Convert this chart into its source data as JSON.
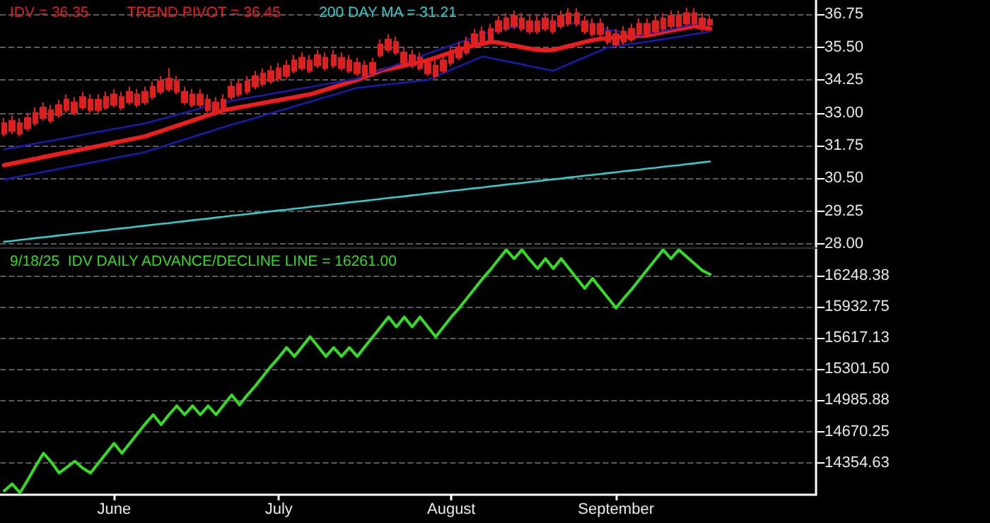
{
  "chart_data": [
    {
      "type": "candlestick",
      "legend": "top left",
      "grid": "y",
      "marker": "none",
      "tick_labels": "y",
      "categories": [
        null,
        null,
        null,
        null,
        null,
        null,
        null,
        null,
        null,
        null,
        null,
        null,
        null,
        null,
        null,
        null,
        null,
        null,
        null,
        null,
        null,
        null,
        null,
        null,
        null,
        null,
        null,
        null,
        null,
        null,
        null,
        null,
        null,
        null,
        null,
        null,
        null,
        null,
        null,
        null,
        null,
        null,
        null,
        null,
        null,
        null,
        null,
        null,
        null,
        null,
        null,
        null,
        null,
        null,
        null,
        null,
        null,
        null,
        null,
        null,
        null,
        null,
        null,
        null,
        null,
        null,
        null,
        null,
        null,
        null,
        null,
        null,
        null,
        null,
        null,
        null,
        null,
        null,
        null,
        null,
        null,
        null,
        null,
        null,
        null,
        null,
        null,
        null,
        null,
        null,
        null,
        null,
        null,
        null,
        null,
        null,
        null,
        null,
        null,
        null,
        null,
        null,
        null,
        null
      ],
      "ylim": [
        27.85,
        37.3
      ],
      "yticks": [
        {
          "value": 28,
          "label": "28.00"
        },
        29.25,
        {
          "value": 30.5,
          "label": "30.50"
        },
        31.75,
        {
          "value": 33,
          "label": "33.00"
        },
        34.25,
        {
          "value": 35.5,
          "label": "35.50"
        },
        36.75
      ],
      "series": [
        {
          "type": "candlestick",
          "name": "IDV = 36.35",
          "color": "#dd1f1f",
          "ohlc": [
            [
              32.6,
              32.8,
              32.1,
              32.2
            ],
            [
              32.7,
              32.9,
              32.2,
              32.3
            ],
            [
              32.6,
              32.8,
              32.1,
              32.2
            ],
            [
              32.8,
              33.0,
              32.3,
              32.4
            ],
            [
              33.0,
              33.2,
              32.5,
              32.6
            ],
            [
              33.2,
              33.4,
              32.7,
              32.8
            ],
            [
              33.1,
              33.3,
              32.6,
              32.7
            ],
            [
              33.3,
              33.5,
              32.8,
              32.9
            ],
            [
              33.5,
              33.7,
              33.0,
              33.1
            ],
            [
              33.4,
              33.6,
              32.9,
              33.0
            ],
            [
              33.6,
              33.8,
              33.1,
              33.2
            ],
            [
              33.5,
              33.7,
              33.0,
              33.1
            ],
            [
              33.5,
              33.7,
              33.0,
              33.1
            ],
            [
              33.6,
              33.8,
              33.1,
              33.2
            ],
            [
              33.7,
              33.9,
              33.2,
              33.3
            ],
            [
              33.6,
              33.8,
              33.1,
              33.2
            ],
            [
              33.8,
              34.0,
              33.3,
              33.4
            ],
            [
              33.7,
              33.9,
              33.2,
              33.3
            ],
            [
              33.8,
              34.0,
              33.3,
              33.4
            ],
            [
              34.0,
              34.2,
              33.5,
              33.6
            ],
            [
              34.2,
              34.4,
              33.7,
              33.8
            ],
            [
              34.3,
              34.7,
              33.8,
              33.9
            ],
            [
              34.2,
              34.4,
              33.7,
              33.8
            ],
            [
              33.8,
              34.0,
              33.3,
              33.4
            ],
            [
              33.7,
              33.9,
              33.2,
              33.3
            ],
            [
              33.7,
              33.9,
              33.2,
              33.3
            ],
            [
              33.5,
              33.7,
              33.0,
              33.1
            ],
            [
              33.4,
              33.6,
              32.9,
              33.0
            ],
            [
              33.5,
              33.7,
              33.0,
              33.1
            ],
            [
              34.0,
              34.2,
              33.5,
              33.6
            ],
            [
              34.1,
              34.3,
              33.6,
              33.7
            ],
            [
              34.2,
              34.4,
              33.7,
              33.8
            ],
            [
              34.4,
              34.6,
              33.9,
              34.0
            ],
            [
              34.5,
              34.7,
              34.0,
              34.1
            ],
            [
              34.6,
              34.8,
              34.1,
              34.2
            ],
            [
              34.7,
              34.9,
              34.2,
              34.3
            ],
            [
              34.8,
              35.0,
              34.3,
              34.4
            ],
            [
              35.0,
              35.2,
              34.5,
              34.6
            ],
            [
              35.1,
              35.3,
              34.6,
              34.7
            ],
            [
              35.0,
              35.2,
              34.5,
              34.6
            ],
            [
              35.2,
              35.4,
              34.7,
              34.8
            ],
            [
              35.1,
              35.3,
              34.6,
              34.7
            ],
            [
              35.2,
              35.4,
              34.7,
              34.8
            ],
            [
              35.1,
              35.3,
              34.6,
              34.7
            ],
            [
              35.0,
              35.2,
              34.5,
              34.6
            ],
            [
              34.9,
              35.1,
              34.4,
              34.5
            ],
            [
              34.8,
              35.0,
              34.3,
              34.4
            ],
            [
              34.9,
              35.1,
              34.4,
              34.5
            ],
            [
              35.6,
              35.8,
              35.1,
              35.2
            ],
            [
              35.8,
              36.0,
              35.3,
              35.4
            ],
            [
              35.7,
              35.9,
              35.2,
              35.3
            ],
            [
              35.3,
              35.5,
              34.8,
              34.9
            ],
            [
              35.2,
              35.4,
              34.7,
              34.8
            ],
            [
              35.1,
              35.3,
              34.6,
              34.7
            ],
            [
              34.9,
              35.1,
              34.4,
              34.5
            ],
            [
              34.8,
              35.0,
              34.3,
              34.4
            ],
            [
              35.0,
              35.2,
              34.5,
              34.6
            ],
            [
              35.3,
              35.5,
              34.8,
              34.9
            ],
            [
              35.5,
              35.7,
              35.0,
              35.1
            ],
            [
              35.7,
              35.9,
              35.2,
              35.3
            ],
            [
              36.0,
              36.2,
              35.5,
              35.6
            ],
            [
              36.1,
              36.3,
              35.6,
              35.7
            ],
            [
              36.2,
              36.4,
              35.7,
              35.8
            ],
            [
              36.5,
              36.7,
              36.0,
              36.1
            ],
            [
              36.6,
              36.8,
              36.1,
              36.2
            ],
            [
              36.7,
              36.9,
              36.2,
              36.3
            ],
            [
              36.6,
              36.8,
              36.1,
              36.2
            ],
            [
              36.5,
              36.7,
              36.0,
              36.1
            ],
            [
              36.5,
              36.7,
              36.0,
              36.1
            ],
            [
              36.6,
              36.8,
              36.1,
              36.2
            ],
            [
              36.5,
              36.7,
              36.0,
              36.1
            ],
            [
              36.7,
              36.9,
              36.2,
              36.3
            ],
            [
              36.8,
              37.0,
              36.3,
              36.4
            ],
            [
              36.8,
              37.0,
              36.3,
              36.4
            ],
            [
              36.5,
              36.7,
              36.0,
              36.1
            ],
            [
              36.4,
              36.6,
              35.9,
              36.0
            ],
            [
              36.4,
              36.6,
              35.9,
              36.0
            ],
            [
              36.1,
              36.3,
              35.6,
              35.7
            ],
            [
              36.0,
              36.2,
              35.5,
              35.6
            ],
            [
              36.1,
              36.3,
              35.6,
              35.7
            ],
            [
              36.2,
              36.4,
              35.7,
              35.8
            ],
            [
              36.4,
              36.6,
              35.9,
              36.0
            ],
            [
              36.4,
              36.6,
              35.9,
              36.0
            ],
            [
              36.5,
              36.7,
              36.0,
              36.1
            ],
            [
              36.6,
              36.8,
              36.1,
              36.2
            ],
            [
              36.7,
              36.9,
              36.2,
              36.3
            ],
            [
              36.7,
              36.9,
              36.2,
              36.3
            ],
            [
              36.8,
              37.0,
              36.3,
              36.4
            ],
            [
              36.8,
              37.0,
              36.3,
              36.4
            ],
            [
              36.6,
              36.8,
              36.1,
              36.2
            ],
            [
              36.55,
              36.7,
              36.25,
              36.35
            ],
            null,
            null,
            null,
            null,
            null,
            null,
            null,
            null,
            null,
            null,
            null,
            null,
            null
          ]
        },
        {
          "type": "line",
          "name": "TREND PIVOT = 36.45",
          "color": "#ee1c1c",
          "values": [
            31.0,
            31.06,
            31.12,
            31.18,
            31.24,
            31.31,
            31.37,
            31.43,
            31.49,
            31.55,
            31.61,
            31.67,
            31.73,
            31.79,
            31.86,
            31.92,
            31.98,
            32.04,
            32.1,
            32.2,
            32.3,
            32.4,
            32.5,
            32.6,
            32.7,
            32.8,
            32.9,
            33.0,
            33.1,
            33.15,
            33.21,
            33.26,
            33.32,
            33.37,
            33.43,
            33.48,
            33.54,
            33.59,
            33.65,
            33.7,
            33.79,
            33.88,
            33.98,
            34.07,
            34.16,
            34.25,
            34.37,
            34.48,
            34.6,
            34.67,
            34.73,
            34.8,
            34.87,
            34.93,
            35.0,
            35.1,
            35.2,
            35.3,
            35.4,
            35.5,
            35.57,
            35.63,
            35.7,
            35.68,
            35.62,
            35.56,
            35.5,
            35.45,
            35.4,
            35.38,
            35.4,
            35.47,
            35.55,
            35.62,
            35.7,
            35.77,
            35.82,
            35.85,
            35.87,
            35.89,
            35.91,
            35.93,
            35.95,
            36.01,
            36.07,
            36.13,
            36.19,
            36.25,
            36.3,
            36.25,
            36.2,
            null,
            null,
            null,
            null,
            null,
            null,
            null,
            null,
            null,
            null,
            null,
            null,
            null
          ]
        },
        {
          "type": "line",
          "color": "#1a1aaa",
          "values": [
            31.6,
            31.66,
            31.71,
            31.77,
            31.82,
            31.88,
            31.93,
            31.99,
            32.04,
            32.1,
            32.16,
            32.21,
            32.27,
            32.32,
            32.38,
            32.43,
            32.49,
            32.54,
            32.6,
            32.68,
            32.76,
            32.84,
            32.92,
            33.0,
            33.08,
            33.16,
            33.24,
            33.32,
            33.4,
            33.45,
            33.51,
            33.56,
            33.61,
            33.66,
            33.72,
            33.77,
            33.82,
            33.88,
            33.93,
            33.98,
            34.04,
            34.09,
            34.14,
            34.19,
            34.25,
            34.3,
            34.41,
            34.51,
            34.62,
            34.72,
            34.83,
            34.93,
            35.04,
            35.14,
            35.25,
            35.36,
            35.46,
            35.57,
            35.67,
            35.78,
            35.88,
            35.99,
            36.09,
            36.2,
            36.23,
            36.26,
            36.28,
            36.31,
            36.34,
            36.37,
            36.39,
            36.42,
            36.45,
            36.39,
            36.34,
            36.28,
            36.23,
            36.17,
            36.12,
            36.06,
            36.01,
            35.95,
            36.01,
            36.07,
            36.13,
            36.19,
            36.25,
            36.32,
            36.38,
            36.44,
            36.5,
            null,
            null,
            null,
            null,
            null,
            null,
            null,
            null,
            null,
            null,
            null,
            null,
            null
          ]
        },
        {
          "type": "line",
          "color": "#1a1aaa",
          "values": [
            30.45,
            30.51,
            30.57,
            30.63,
            30.68,
            30.74,
            30.8,
            30.86,
            30.92,
            30.98,
            31.03,
            31.09,
            31.15,
            31.21,
            31.27,
            31.33,
            31.38,
            31.44,
            31.5,
            31.6,
            31.69,
            31.79,
            31.88,
            31.98,
            32.07,
            32.17,
            32.26,
            32.36,
            32.45,
            32.54,
            32.63,
            32.71,
            32.8,
            32.89,
            32.98,
            33.07,
            33.15,
            33.24,
            33.33,
            33.42,
            33.51,
            33.6,
            33.68,
            33.77,
            33.86,
            33.95,
            33.98,
            34.02,
            34.05,
            34.08,
            34.12,
            34.15,
            34.18,
            34.22,
            34.25,
            34.38,
            34.51,
            34.64,
            34.77,
            34.89,
            35.02,
            35.15,
            35.09,
            35.03,
            34.97,
            34.91,
            34.85,
            34.78,
            34.72,
            34.66,
            34.6,
            34.73,
            34.86,
            34.99,
            35.11,
            35.24,
            35.37,
            35.5,
            35.54,
            35.59,
            35.63,
            35.67,
            35.71,
            35.76,
            35.8,
            35.85,
            35.9,
            35.95,
            36.0,
            36.05,
            36.1,
            null,
            null,
            null,
            null,
            null,
            null,
            null,
            null,
            null,
            null,
            null,
            null,
            null
          ]
        },
        {
          "type": "line",
          "name": "200 DAY MA = 31.21",
          "color": "#33cccc",
          "values": [
            28.08,
            28.11,
            28.15,
            28.18,
            28.22,
            28.25,
            28.28,
            28.32,
            28.35,
            28.39,
            28.42,
            28.45,
            28.49,
            28.52,
            28.56,
            28.59,
            28.62,
            28.66,
            28.69,
            28.73,
            28.76,
            28.79,
            28.83,
            28.86,
            28.9,
            28.93,
            28.96,
            29.0,
            29.03,
            29.07,
            29.1,
            29.13,
            29.17,
            29.2,
            29.24,
            29.27,
            29.3,
            29.34,
            29.37,
            29.41,
            29.44,
            29.47,
            29.51,
            29.54,
            29.58,
            29.61,
            29.64,
            29.68,
            29.71,
            29.75,
            29.78,
            29.81,
            29.85,
            29.88,
            29.92,
            29.95,
            29.98,
            30.02,
            30.05,
            30.09,
            30.12,
            30.15,
            30.19,
            30.22,
            30.26,
            30.29,
            30.32,
            30.36,
            30.39,
            30.43,
            30.46,
            30.49,
            30.53,
            30.56,
            30.6,
            30.63,
            30.66,
            30.7,
            30.73,
            30.77,
            30.8,
            30.83,
            30.87,
            30.9,
            30.94,
            30.97,
            31.0,
            31.04,
            31.07,
            31.11,
            31.14,
            null,
            null,
            null,
            null,
            null,
            null,
            null,
            null,
            null,
            null,
            null,
            null,
            null
          ]
        }
      ]
    },
    {
      "type": "line",
      "legend": "top left",
      "grid": "y",
      "marker": "none",
      "categories": [
        null,
        null,
        null,
        null,
        null,
        null,
        null,
        null,
        null,
        null,
        null,
        null,
        null,
        null,
        "June",
        null,
        null,
        null,
        null,
        null,
        null,
        null,
        null,
        null,
        null,
        null,
        null,
        null,
        null,
        null,
        null,
        null,
        null,
        null,
        null,
        "July",
        null,
        null,
        null,
        null,
        null,
        null,
        null,
        null,
        null,
        null,
        null,
        null,
        null,
        null,
        null,
        null,
        null,
        null,
        null,
        null,
        null,
        "August",
        null,
        null,
        null,
        null,
        null,
        null,
        null,
        null,
        null,
        null,
        null,
        null,
        null,
        null,
        null,
        null,
        null,
        null,
        null,
        null,
        "September",
        null,
        null,
        null,
        null,
        null,
        null,
        null,
        null,
        null,
        null,
        null,
        null,
        null,
        null,
        null,
        null,
        null,
        null,
        null,
        null,
        null,
        null,
        null,
        null,
        null
      ],
      "ylim": [
        14030,
        16520
      ],
      "yticks": [
        14354.63,
        14670.25,
        14985.88,
        {
          "value": 15301.5,
          "label": "15301.50"
        },
        15617.13,
        15932.75,
        16248.38
      ],
      "series": [
        {
          "name": "9/18/25  IDV DAILY ADVANCE/DECLINE LINE = 16261.00",
          "color": "#33dd22",
          "values": [
            14070,
            14140,
            14050,
            14180,
            14320,
            14450,
            14360,
            14250,
            14310,
            14370,
            14300,
            14250,
            14350,
            14450,
            14550,
            14450,
            14550,
            14650,
            14750,
            14840,
            14740,
            14840,
            14930,
            14840,
            14930,
            14840,
            14930,
            14840,
            14940,
            15040,
            14940,
            15040,
            15130,
            15230,
            15330,
            15420,
            15520,
            15430,
            15530,
            15630,
            15530,
            15430,
            15520,
            15430,
            15520,
            15430,
            15530,
            15630,
            15730,
            15830,
            15730,
            15830,
            15730,
            15830,
            15730,
            15630,
            15730,
            15830,
            15920,
            16020,
            16120,
            16220,
            16310,
            16410,
            16510,
            16420,
            16510,
            16410,
            16320,
            16420,
            16320,
            16420,
            16320,
            16220,
            16120,
            16220,
            16120,
            16020,
            15920,
            16020,
            16110,
            16210,
            16310,
            16410,
            16510,
            16420,
            16510,
            16440,
            16370,
            16300,
            16261,
            null,
            null,
            null,
            null,
            null,
            null,
            null,
            null,
            null,
            null,
            null,
            null,
            null
          ]
        }
      ]
    }
  ]
}
